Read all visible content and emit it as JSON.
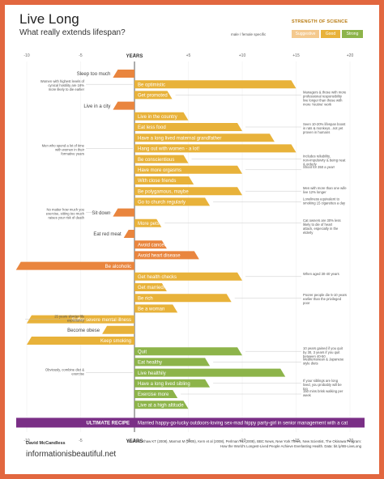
{
  "title": "Live Long",
  "subtitle": "What really extends lifespan?",
  "legend": {
    "strength_label": "STRENGTH OF SCIENCE",
    "gender_label": "male / female specific",
    "levels": [
      "Suggestive",
      "Good",
      "Strong"
    ],
    "colors": {
      "Suggestive": "#f4c98e",
      "Good": "#e8b23a",
      "Strong": "#8db44a"
    }
  },
  "colors": {
    "negative": "#e9853e",
    "suggestive": "#e8b23a",
    "good": "#e8b23a",
    "strong": "#8db44a",
    "ultimate": "#7a2f86",
    "border": "#e2673f"
  },
  "credit": "David McCandless",
  "site": "informationisbeautiful.net",
  "sources": "Sources: Khaw KT (2008), Marmot M (2005), Kern et al (2008), Perlman RL (2008), BBC News, New York Times, New Scientist, The Okinawa Program: How the World's Longest-Lived People Achieve Everlasting Health. Data: bit.ly/IIB-LiveLong",
  "chart_data": {
    "type": "bar",
    "xlabel": "YEARS",
    "xlim": [
      -10,
      20
    ],
    "ticks": [
      -10,
      -5,
      0,
      5,
      10,
      15,
      20
    ],
    "tick_labels": [
      "-10",
      "-5",
      "0",
      "+5",
      "+10",
      "+15",
      "+20"
    ],
    "bars": [
      {
        "label": "Sleep too much",
        "value": -2,
        "color": "negative"
      },
      {
        "label": "Be optimistic",
        "value": 15,
        "color": "good",
        "icon": "",
        "note": "Women with highest levels of cynical hostility are 16% more likely to die earlier"
      },
      {
        "label": "Get promoted",
        "value": 3.5,
        "color": "good",
        "icon": "man",
        "note": "Managers & those with more professional responsibility live longer than those with more 'routine' work"
      },
      {
        "label": "Live in a city",
        "value": -2,
        "color": "negative"
      },
      {
        "label": "Live in the country",
        "value": 5,
        "color": "good"
      },
      {
        "label": "Eat less food",
        "value": 10,
        "color": "good",
        "note": "Seen 10-20% lifespan boost in rats & monkeys...not yet proven in humans"
      },
      {
        "label": "Have a long lived maternal grandfather",
        "value": 13,
        "color": "good",
        "icon": "woman"
      },
      {
        "label": "Hang out with women - a lot!",
        "value": 15,
        "color": "good",
        "icon": "man",
        "note": "Men who spend a lot of time with women in their formative years"
      },
      {
        "label": "Be conscientious",
        "value": 5,
        "color": "good",
        "note": "Includes reliability, non-impulsivity & being neat & orderly"
      },
      {
        "label": "Have more orgasms",
        "value": 10,
        "color": "good",
        "icon": "man",
        "note": "Shoot for 350 a year!"
      },
      {
        "label": "With close friends",
        "value": 5.5,
        "color": "good"
      },
      {
        "label": "Be polygamous, maybe",
        "value": 10,
        "color": "good",
        "icon": "man",
        "note": "Men with more than one wife live 12% longer"
      },
      {
        "label": "Go to church regularly",
        "value": 7,
        "color": "good",
        "note": "Loneliness equivalent to smoking 15 cigarettes a day"
      },
      {
        "label": "Sit down",
        "value": -2,
        "color": "negative",
        "note": "No matter how much you exercise, sitting too much raises your risk of death"
      },
      {
        "label": "More pets",
        "value": 2.5,
        "color": "good",
        "note": "Cat owners are 30% less likely to die of heart attack, especially in the elderly"
      },
      {
        "label": "Eat red meat",
        "value": -1,
        "color": "negative"
      },
      {
        "label": "Avoid cancer",
        "value": 3,
        "color": "negative"
      },
      {
        "label": "Avoid heart disease",
        "value": 6,
        "color": "negative"
      },
      {
        "label": "Be alcoholic",
        "value": -11,
        "color": "negative"
      },
      {
        "label": "Get health checks",
        "value": 10,
        "color": "good",
        "note": "When aged 30-40 years"
      },
      {
        "label": "Get married!",
        "value": 3,
        "color": "good",
        "icon": "man"
      },
      {
        "label": "Be rich",
        "value": 9,
        "color": "good",
        "note": "Poorer people die 5-10 years earlier than the privileged poor"
      },
      {
        "label": "Be a woman",
        "value": 4,
        "color": "good",
        "icon": "woman"
      },
      {
        "label": "Suffer severe mental illness",
        "value": -10,
        "color": "good",
        "note": "25 years shorter life expectancy"
      },
      {
        "label": "Become obese",
        "value": -3,
        "color": "good"
      },
      {
        "label": "Keep smoking",
        "value": -10,
        "color": "good"
      },
      {
        "label": "Quit",
        "value": 10,
        "color": "strong",
        "note": "10 years gained if you quit by 30, 3 years if you quit between 40-50"
      },
      {
        "label": "Eat healthy",
        "value": 7,
        "color": "strong",
        "note": "Mediterranean & Japanese style diets"
      },
      {
        "label": "Live healthily",
        "value": 14,
        "color": "strong",
        "note": "Obviously, combine diet & exercise"
      },
      {
        "label": "Have a long lived sibling",
        "value": 7,
        "color": "strong",
        "note": "If your siblings are long lived, you probably will be too"
      },
      {
        "label": "Exercise more",
        "value": 4,
        "color": "strong",
        "note": "150 mins brisk walking per week"
      },
      {
        "label": "Live at a high altitude",
        "value": 5,
        "color": "strong"
      }
    ],
    "ultimate": {
      "label": "ULTIMATE RECIPE",
      "text": "Married happy-go-lucky outdoors-loving sex-mad hippy party-girl in senior management with a cat"
    }
  }
}
